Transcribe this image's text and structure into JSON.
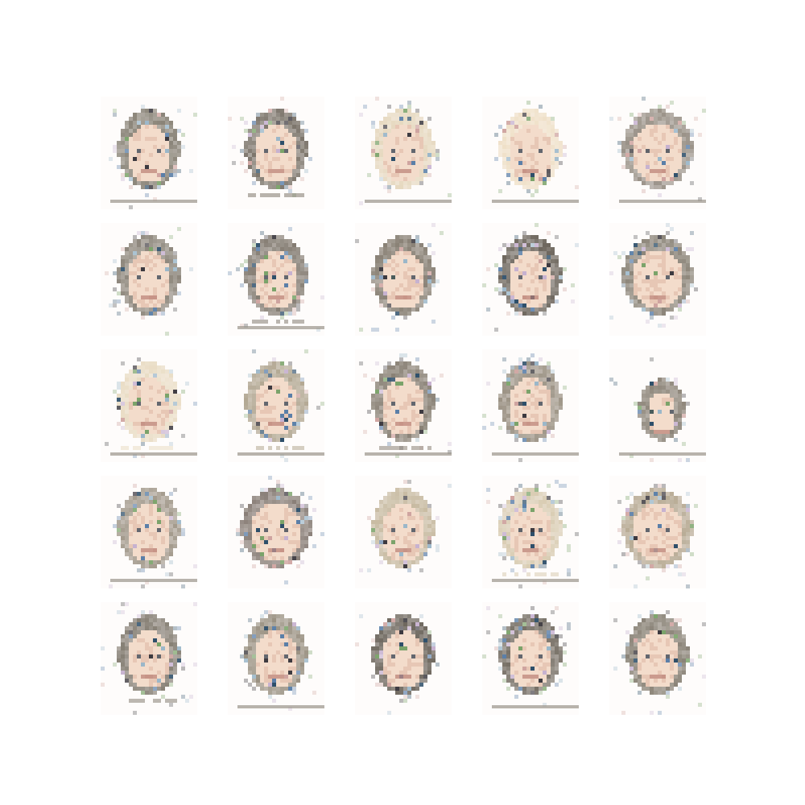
{
  "figure": {
    "rows": 5,
    "cols": 5,
    "samples": [
      {
        "hair": "#8a8478",
        "style": "bob",
        "shoulders": false,
        "underline": true
      },
      {
        "hair": "#7d766c",
        "style": "bangs",
        "shoulders": true,
        "underline": false
      },
      {
        "hair": "#e6d8bf",
        "style": "light",
        "shoulders": false,
        "underline": true
      },
      {
        "hair": "#efe0c8",
        "style": "short",
        "shoulders": false,
        "underline": true
      },
      {
        "hair": "#9a9288",
        "style": "messy",
        "shoulders": false,
        "underline": true
      },
      {
        "hair": "#8e877c",
        "style": "long",
        "shoulders": false,
        "underline": false
      },
      {
        "hair": "#847c72",
        "style": "bob",
        "shoulders": true,
        "underline": true
      },
      {
        "hair": "#8a8276",
        "style": "long",
        "shoulders": false,
        "underline": false
      },
      {
        "hair": "#6f685f",
        "style": "short",
        "shoulders": false,
        "underline": false
      },
      {
        "hair": "#8b8478",
        "style": "curly",
        "shoulders": false,
        "underline": false
      },
      {
        "hair": "#e9dcc4",
        "style": "light",
        "shoulders": true,
        "underline": true
      },
      {
        "hair": "#b2a792",
        "style": "bob",
        "shoulders": true,
        "underline": true
      },
      {
        "hair": "#8a8276",
        "style": "short",
        "shoulders": true,
        "underline": true
      },
      {
        "hair": "#9c9385",
        "style": "long",
        "shoulders": false,
        "underline": true
      },
      {
        "hair": "#8c8478",
        "style": "small",
        "shoulders": false,
        "underline": true
      },
      {
        "hair": "#a39a8c",
        "style": "short",
        "shoulders": false,
        "underline": true
      },
      {
        "hair": "#8a7f78",
        "style": "curly",
        "shoulders": false,
        "underline": false
      },
      {
        "hair": "#c8bba2",
        "style": "bob",
        "shoulders": false,
        "underline": false
      },
      {
        "hair": "#d9ccb3",
        "style": "light",
        "shoulders": true,
        "underline": true
      },
      {
        "hair": "#b8ab95",
        "style": "curly",
        "shoulders": false,
        "underline": false
      },
      {
        "hair": "#857e73",
        "style": "long",
        "shoulders": true,
        "underline": false
      },
      {
        "hair": "#9a9182",
        "style": "bob",
        "shoulders": false,
        "underline": true
      },
      {
        "hair": "#6d665d",
        "style": "short",
        "shoulders": false,
        "underline": false
      },
      {
        "hair": "#777066",
        "style": "bob",
        "shoulders": false,
        "underline": true
      },
      {
        "hair": "#8b8478",
        "style": "long",
        "shoulders": false,
        "underline": false
      }
    ],
    "palette": {
      "skin": "#f3dccb",
      "skin_shade": "#e7c7b5",
      "eye": "#3f4a57",
      "mouth": "#b97f74",
      "noise": [
        "#5b7fa8",
        "#2e4f6a",
        "#9bb7c9",
        "#cfa4a0",
        "#7ba36a",
        "#c7b2d0",
        "#3d3a40"
      ],
      "underline": "#9a948a",
      "background": "#ffffff"
    }
  }
}
